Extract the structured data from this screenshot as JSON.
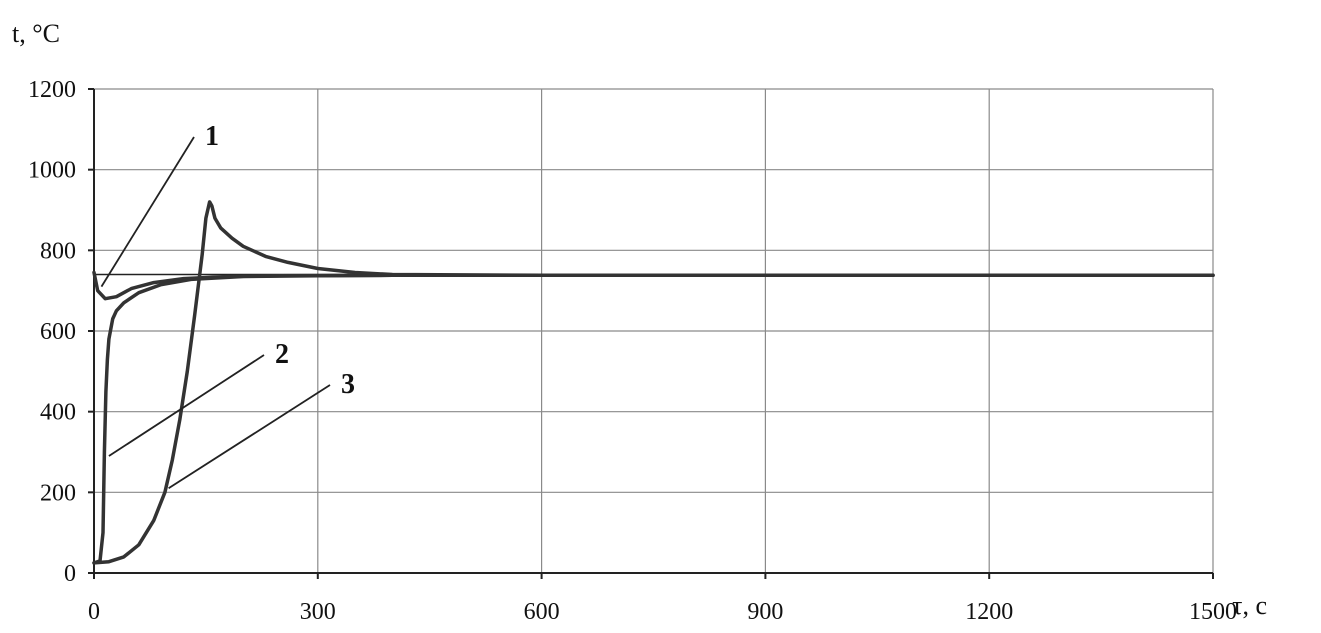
{
  "chart_data": {
    "type": "line",
    "title": "",
    "xlabel": "τ, с",
    "ylabel": "t, °C",
    "xlim": [
      0,
      1500
    ],
    "ylim": [
      0,
      1200
    ],
    "x_ticks": [
      0,
      300,
      600,
      900,
      1200,
      1500
    ],
    "y_ticks": [
      0,
      200,
      400,
      600,
      800,
      1000,
      1200
    ],
    "x_tick_labels": [
      "0",
      "300",
      "600",
      "900",
      "1200",
      "1500"
    ],
    "y_tick_labels": [
      "0",
      "200",
      "400",
      "600",
      "800",
      "1000",
      "1200"
    ],
    "grid": true,
    "reference_line": 740,
    "series": [
      {
        "name": "1",
        "x": [
          0,
          5,
          15,
          30,
          50,
          80,
          120,
          180,
          250,
          400,
          800,
          1200,
          1500
        ],
        "y": [
          745,
          700,
          680,
          685,
          705,
          720,
          730,
          735,
          737,
          738,
          738,
          738,
          738
        ]
      },
      {
        "name": "2",
        "x": [
          0,
          8,
          12,
          14,
          16,
          18,
          20,
          25,
          30,
          40,
          60,
          90,
          130,
          200,
          300,
          400,
          600,
          900,
          1200,
          1500
        ],
        "y": [
          25,
          30,
          100,
          300,
          450,
          530,
          580,
          630,
          650,
          670,
          695,
          715,
          728,
          735,
          737,
          738,
          738,
          738,
          738,
          738
        ]
      },
      {
        "name": "3",
        "x": [
          0,
          20,
          40,
          60,
          80,
          95,
          105,
          115,
          125,
          135,
          145,
          150,
          155,
          158,
          162,
          170,
          185,
          200,
          230,
          260,
          300,
          350,
          400,
          600,
          900,
          1200,
          1500
        ],
        "y": [
          25,
          28,
          40,
          70,
          130,
          200,
          280,
          380,
          500,
          640,
          790,
          880,
          920,
          910,
          880,
          855,
          830,
          810,
          785,
          770,
          755,
          745,
          740,
          738,
          738,
          738,
          738
        ]
      }
    ],
    "annotations": [
      {
        "text": "1",
        "x": 10,
        "y": 710
      },
      {
        "text": "2",
        "x": 20,
        "y": 290
      },
      {
        "text": "3",
        "x": 100,
        "y": 210
      }
    ]
  }
}
